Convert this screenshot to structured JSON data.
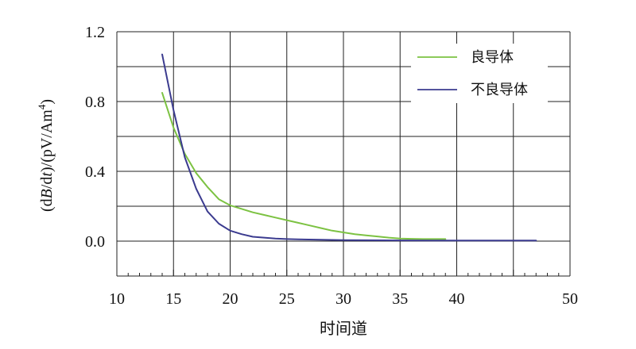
{
  "chart_data": {
    "type": "line",
    "title": "",
    "xlabel": "时间道",
    "ylabel": {
      "prefix": "(d",
      "b_italic": "B",
      "middle": "/d",
      "t_italic": "t",
      "suffix": ")/(pV/Am",
      "sup": "4",
      "close": ")"
    },
    "xlim": [
      10,
      50
    ],
    "ylim": [
      -0.2,
      1.2
    ],
    "x_ticks": [
      10,
      15,
      20,
      25,
      30,
      35,
      40,
      50
    ],
    "x_tick_labels": [
      "10",
      "15",
      "20",
      "25",
      "30",
      "35",
      "40",
      "50"
    ],
    "x_gridlines": [
      10,
      15,
      20,
      25,
      30,
      35,
      40,
      45,
      50
    ],
    "y_ticks": [
      0.0,
      0.4,
      0.8,
      1.2
    ],
    "y_tick_labels": [
      "0.0",
      "0.4",
      "0.8",
      "1.2"
    ],
    "y_gridlines": [
      -0.2,
      0.0,
      0.2,
      0.4,
      0.6,
      0.8,
      1.0,
      1.2
    ],
    "grid": true,
    "legend_position": "top-right",
    "series": [
      {
        "name": "良导体",
        "color": "#7cc242",
        "x": [
          14,
          15,
          16,
          17,
          18,
          19,
          20,
          21,
          22,
          23,
          24,
          25,
          26,
          27,
          28,
          29,
          30,
          31,
          32,
          33,
          34,
          35,
          36,
          37,
          38,
          39
        ],
        "y": [
          0.85,
          0.65,
          0.5,
          0.39,
          0.31,
          0.24,
          0.205,
          0.185,
          0.165,
          0.15,
          0.135,
          0.12,
          0.105,
          0.09,
          0.075,
          0.06,
          0.05,
          0.04,
          0.033,
          0.027,
          0.02,
          0.015,
          0.013,
          0.012,
          0.012,
          0.012
        ]
      },
      {
        "name": "不良导体",
        "color": "#3b3b8f",
        "x": [
          14,
          15,
          16,
          17,
          18,
          19,
          20,
          21,
          22,
          23,
          24,
          25,
          26,
          28,
          30,
          32,
          35,
          38,
          40,
          42,
          45,
          47
        ],
        "y": [
          1.07,
          0.75,
          0.48,
          0.3,
          0.17,
          0.1,
          0.06,
          0.04,
          0.025,
          0.02,
          0.015,
          0.012,
          0.01,
          0.008,
          0.006,
          0.005,
          0.004,
          0.003,
          0.003,
          0.003,
          0.003,
          0.003
        ]
      }
    ]
  }
}
